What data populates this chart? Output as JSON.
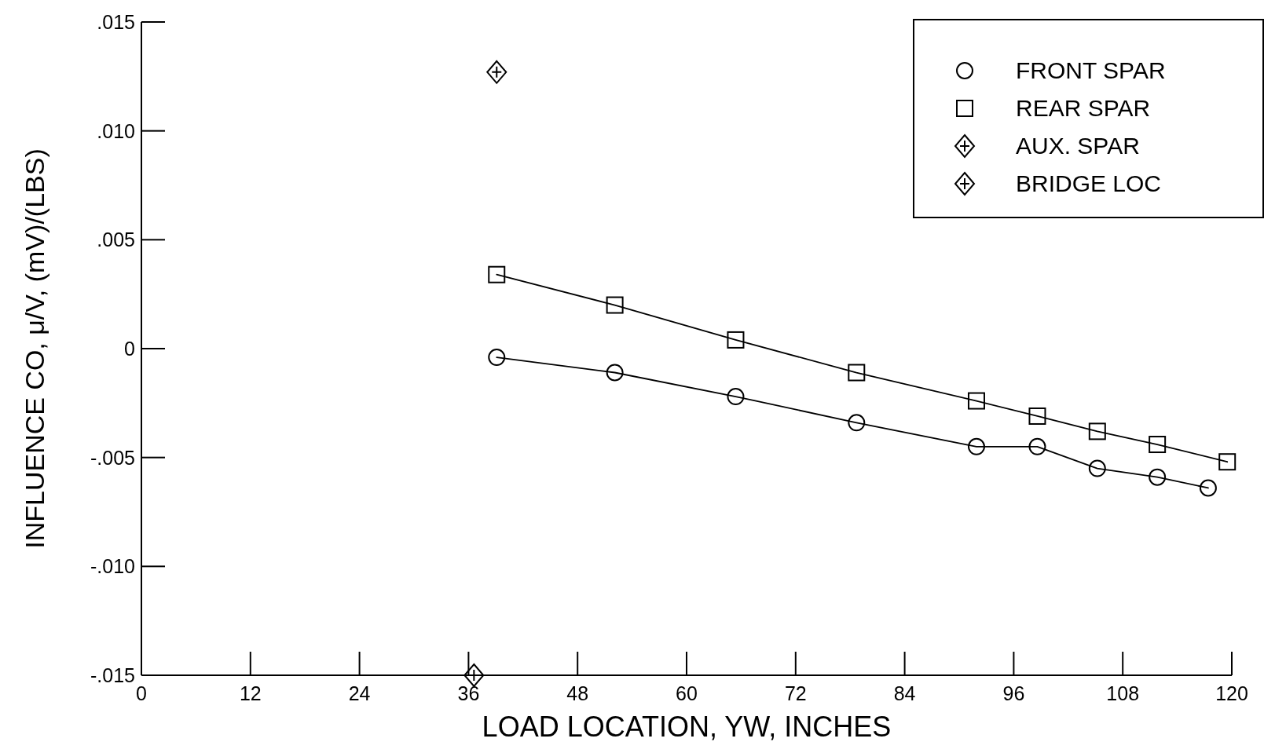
{
  "chart_data": {
    "type": "line",
    "xlabel": "LOAD LOCATION, YW, INCHES",
    "ylabel": "INFLUENCE CO, μ/V, (mV)/(LBS)",
    "xlim": [
      0,
      120
    ],
    "xticks": [
      0,
      12,
      24,
      36,
      48,
      60,
      72,
      84,
      96,
      108,
      120
    ],
    "ylim": [
      -0.015,
      0.015
    ],
    "yticks": [
      {
        "value": -0.015,
        "label": "-.015"
      },
      {
        "value": -0.01,
        "label": "-.010"
      },
      {
        "value": -0.005,
        "label": "-.005"
      },
      0,
      {
        "value": 0.005,
        "label": ".005"
      },
      {
        "value": 0.01,
        "label": ".010"
      },
      {
        "value": 0.015,
        "label": ".015"
      }
    ],
    "grid": false,
    "legend": "top right",
    "series": [
      {
        "name": "FRONT SPAR",
        "marker": "circle",
        "color": "#000000",
        "x": [
          39.1,
          52.1,
          65.4,
          78.7,
          91.9,
          98.6,
          105.2,
          111.8,
          117.4
        ],
        "values": [
          -0.0004,
          -0.0011,
          -0.0022,
          -0.0034,
          -0.0045,
          -0.0045,
          -0.0055,
          -0.0059,
          -0.0064
        ]
      },
      {
        "name": "REAR SPAR",
        "marker": "square",
        "color": "#000000",
        "x": [
          39.1,
          52.1,
          65.4,
          78.7,
          91.9,
          98.6,
          105.2,
          111.8,
          119.5
        ],
        "values": [
          0.0034,
          0.002,
          0.0004,
          -0.0011,
          -0.0024,
          -0.0031,
          -0.0038,
          -0.0044,
          -0.0052
        ]
      },
      {
        "name": "AUX. SPAR",
        "type": "scatter",
        "marker": "diamond",
        "color": "#000000",
        "x": [
          39.1
        ],
        "values": [
          0.0127
        ]
      },
      {
        "name": "BRIDGE LOC",
        "type": "scatter",
        "marker": "diamond",
        "color": "#000000",
        "x": [
          36.6
        ],
        "values": [
          -0.015
        ]
      }
    ]
  }
}
